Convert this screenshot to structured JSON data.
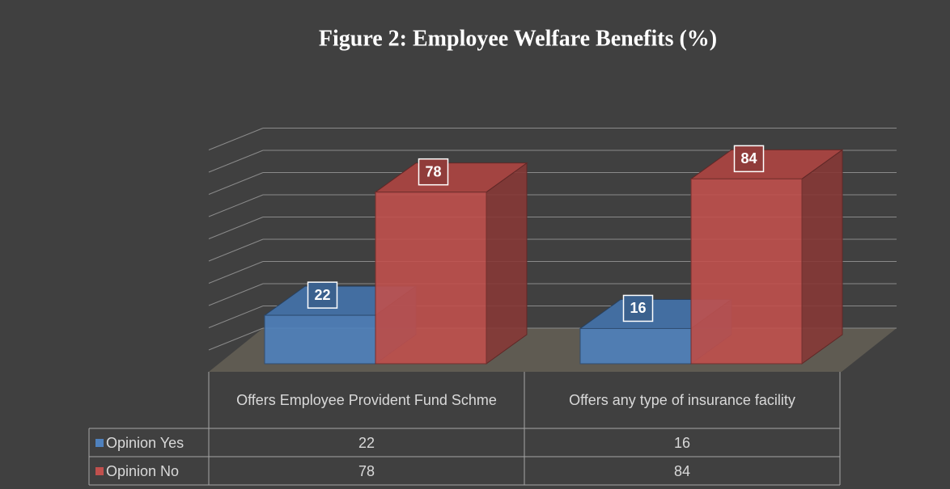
{
  "chart_data": {
    "type": "bar3d",
    "title": "Figure 2: Employee Welfare Benefits (%)",
    "categories": [
      "Offers Employee Provident Fund Schme",
      "Offers any type of insurance facility"
    ],
    "series": [
      {
        "name": "Opinion Yes",
        "color": "#4f81bd",
        "values": [
          22,
          16
        ]
      },
      {
        "name": "Opinion No",
        "color": "#c0504d",
        "values": [
          78,
          84
        ]
      }
    ],
    "ylim": [
      0,
      90
    ],
    "yticks": [
      0,
      10,
      20,
      30,
      40,
      50,
      60,
      70,
      80,
      90
    ],
    "grid": true,
    "data_table": true
  }
}
